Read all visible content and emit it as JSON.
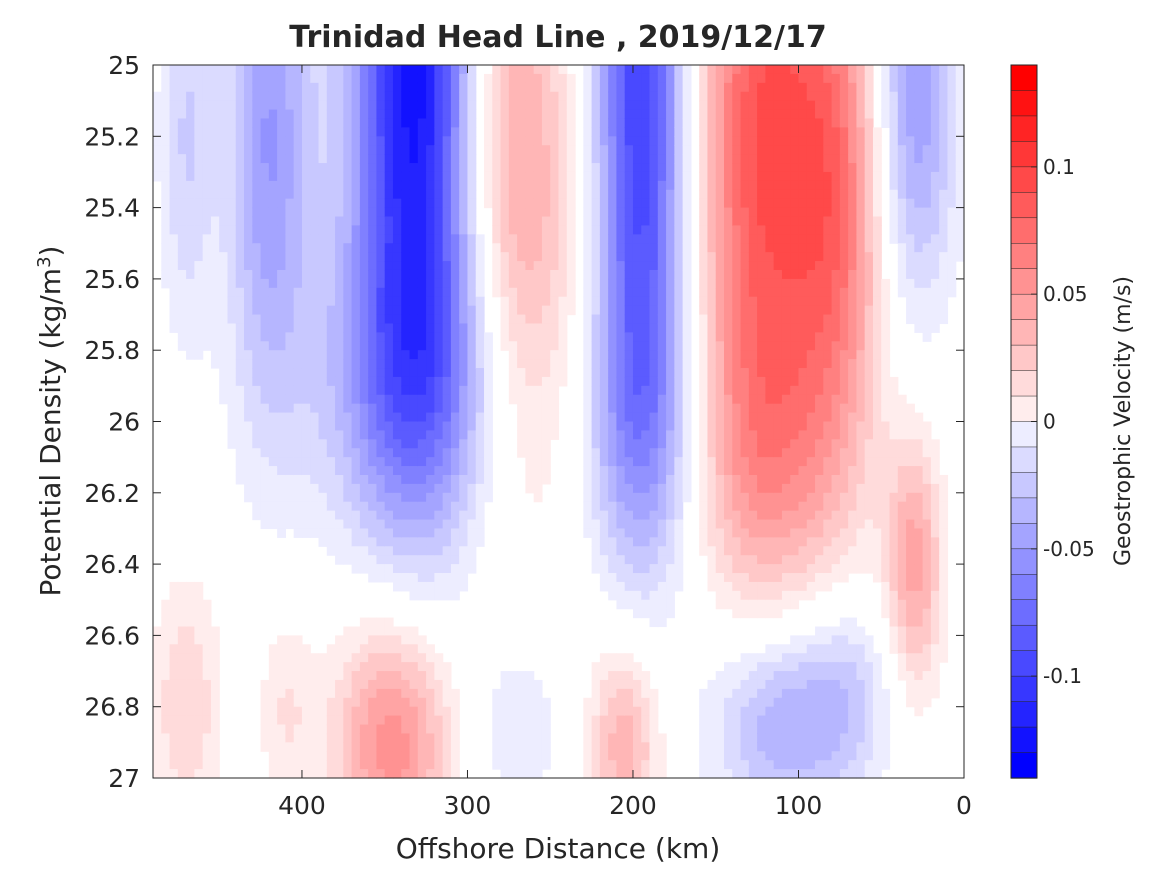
{
  "chart_data": {
    "type": "heatmap",
    "title": "Trinidad Head Line , 2019/12/17",
    "xlabel": "Offshore Distance (km)",
    "ylabel_main": "Potential Density (kg/m",
    "ylabel_sup": "3",
    "ylabel_end": ")",
    "colorbar_label": "Geostrophic Velocity (m/s)",
    "x_reversed": true,
    "xlim": [
      0,
      490
    ],
    "ylim": [
      25,
      27
    ],
    "y_reversed": true,
    "x_ticks": [
      400,
      300,
      200,
      100,
      0
    ],
    "x_tick_labels": [
      "400",
      "300",
      "200",
      "100",
      "0"
    ],
    "y_ticks": [
      25,
      25.2,
      25.4,
      25.6,
      25.8,
      26,
      26.2,
      26.4,
      26.6,
      26.8,
      27
    ],
    "y_tick_labels": [
      "25",
      "25.2",
      "25.4",
      "25.6",
      "25.8",
      "26",
      "26.2",
      "26.4",
      "26.6",
      "26.8",
      "27"
    ],
    "clim": [
      -0.14,
      0.14
    ],
    "colorbar_ticks": [
      0.1,
      0.05,
      0,
      -0.05,
      -0.1
    ],
    "colorbar_tick_labels": [
      "0.1",
      "0.05",
      "0",
      "-0.05",
      "-0.1"
    ],
    "contour_step": 0.01,
    "colors": {
      "negative": "#0000ff",
      "positive": "#ff0000",
      "zero": "#ffffff"
    },
    "features": [
      {
        "x": 330,
        "y": 25.0,
        "amp": -0.14,
        "sx": 28,
        "sy": 0.75
      },
      {
        "x": 330,
        "y": 25.9,
        "amp": -0.05,
        "sx": 45,
        "sy": 0.3
      },
      {
        "x": 195,
        "y": 25.1,
        "amp": -0.115,
        "sx": 20,
        "sy": 0.7
      },
      {
        "x": 195,
        "y": 26.0,
        "amp": -0.04,
        "sx": 25,
        "sy": 0.3
      },
      {
        "x": 420,
        "y": 25.2,
        "amp": -0.06,
        "sx": 18,
        "sy": 0.55
      },
      {
        "x": 470,
        "y": 25.2,
        "amp": -0.03,
        "sx": 12,
        "sy": 0.4
      },
      {
        "x": 30,
        "y": 25.1,
        "amp": -0.06,
        "sx": 18,
        "sy": 0.4
      },
      {
        "x": 280,
        "y": 25.1,
        "amp": 0.05,
        "sx": 25,
        "sy": 0.7
      },
      {
        "x": 255,
        "y": 25.6,
        "amp": 0.025,
        "sx": 30,
        "sy": 0.5
      },
      {
        "x": 120,
        "y": 25.2,
        "amp": 0.1,
        "sx": 30,
        "sy": 0.65
      },
      {
        "x": 75,
        "y": 25.4,
        "amp": 0.06,
        "sx": 20,
        "sy": 0.55
      },
      {
        "x": 120,
        "y": 26.1,
        "amp": 0.04,
        "sx": 30,
        "sy": 0.3
      },
      {
        "x": 30,
        "y": 26.4,
        "amp": 0.055,
        "sx": 12,
        "sy": 0.25
      },
      {
        "x": 345,
        "y": 26.9,
        "amp": 0.07,
        "sx": 25,
        "sy": 0.25
      },
      {
        "x": 205,
        "y": 26.9,
        "amp": 0.05,
        "sx": 15,
        "sy": 0.2
      },
      {
        "x": 470,
        "y": 26.8,
        "amp": 0.03,
        "sx": 15,
        "sy": 0.25
      },
      {
        "x": 410,
        "y": 26.8,
        "amp": 0.02,
        "sx": 12,
        "sy": 0.2
      },
      {
        "x": 110,
        "y": 26.85,
        "amp": -0.05,
        "sx": 30,
        "sy": 0.2
      },
      {
        "x": 70,
        "y": 26.75,
        "amp": -0.025,
        "sx": 20,
        "sy": 0.2
      },
      {
        "x": 270,
        "y": 26.85,
        "amp": -0.02,
        "sx": 20,
        "sy": 0.2
      }
    ]
  }
}
